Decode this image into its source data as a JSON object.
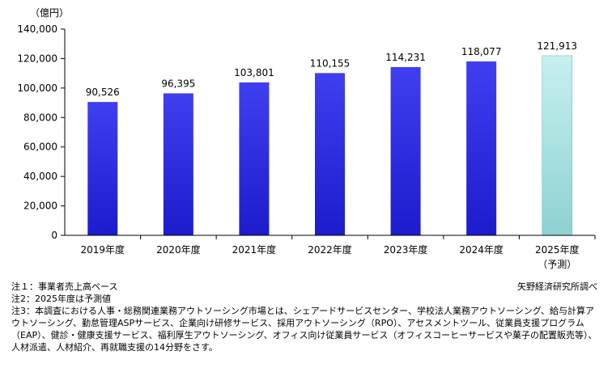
{
  "chart_data": {
    "type": "bar",
    "unit_label": "（億円）",
    "categories": [
      "2019年度",
      "2020年度",
      "2021年度",
      "2022年度",
      "2023年度",
      "2024年度",
      "2025年度"
    ],
    "category_sublabels": [
      "",
      "",
      "",
      "",
      "",
      "",
      "（予測）"
    ],
    "values": [
      90526,
      96395,
      103801,
      110155,
      114231,
      118077,
      121913
    ],
    "value_labels": [
      "90,526",
      "96,395",
      "103,801",
      "110,155",
      "114,231",
      "118,077",
      "121,913"
    ],
    "forecast_index": 6,
    "ylim": [
      0,
      140000
    ],
    "yticks": [
      0,
      20000,
      40000,
      60000,
      80000,
      100000,
      120000,
      140000
    ],
    "ytick_labels": [
      "0",
      "20,000",
      "40,000",
      "60,000",
      "80,000",
      "100,000",
      "120,000",
      "140,000"
    ],
    "colors": {
      "actual_top": "#3f3ff0",
      "actual_bottom": "#1c1ccd",
      "forecast_top": "#c6f0f0",
      "forecast_bottom": "#8ed2d2",
      "axis": "#000000"
    },
    "grid": false
  },
  "notes": {
    "note1": "注１：事業者売上高ベース",
    "note2": "注2：2025年度は予測値",
    "note3": "注3：本調査における人事・総務関連業務アウトソーシング市場とは、シェアードサービスセンター、学校法人業務アウトソーシング、給与計算アウトソーシング、勤怠管理ASPサービス、企業向け研修サービス、採用アウトソーシング（RPO）、アセスメントツール、従業員支援プログラム（EAP）、健診・健康支援サービス、福利厚生アウトソーシング、オフィス向け従業員サービス（オフィスコーヒーサービスや菓子の配置販売等）、人材派遣、人材紹介、再就職支援の14分野をさす。"
  },
  "source": "矢野経済研究所調べ"
}
